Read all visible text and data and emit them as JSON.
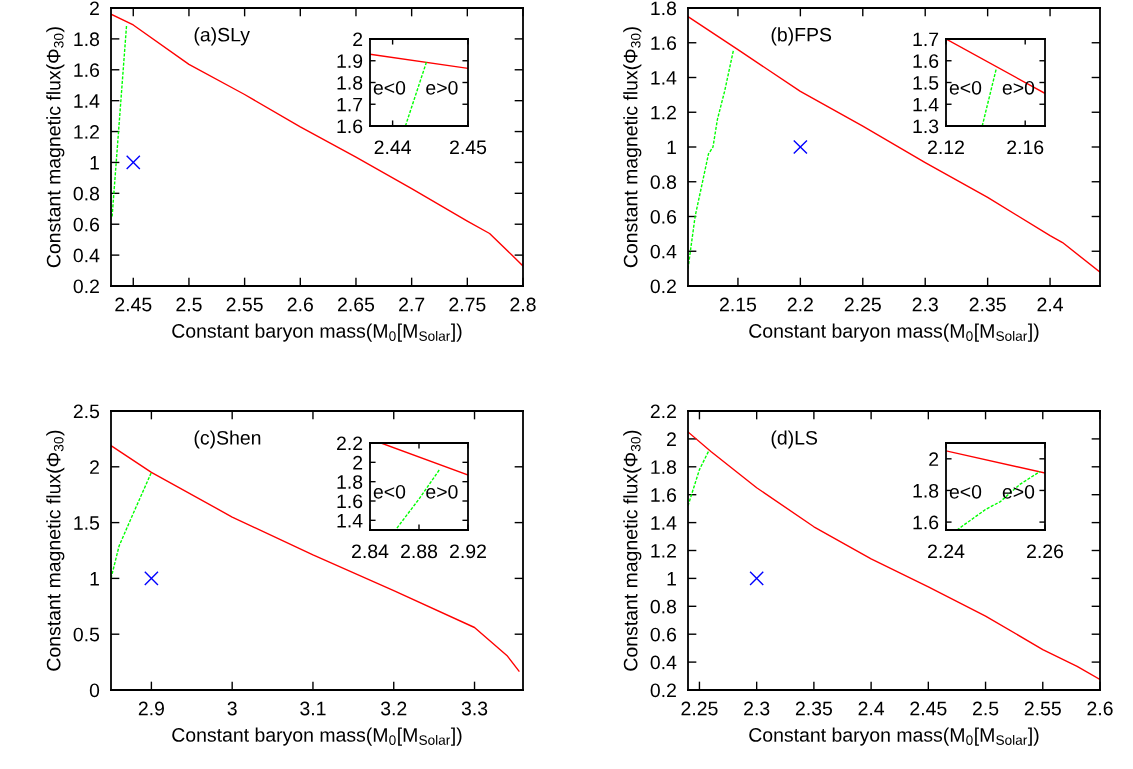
{
  "chart_data": [
    {
      "type": "line",
      "title": "(a)SLy",
      "xlabel": "Constant baryon mass(M$_{0}$[M$_{Solar}$])",
      "ylabel": "Constant magnetic flux(Φ$_{30}$)",
      "xlim": [
        2.43,
        2.8
      ],
      "xticks": [
        2.45,
        2.5,
        2.55,
        2.6,
        2.65,
        2.7,
        2.75,
        2.8
      ],
      "ylim": [
        0.2,
        2
      ],
      "yticks": [
        0.2,
        0.4,
        0.6,
        0.8,
        1,
        1.2,
        1.4,
        1.6,
        1.8,
        2
      ],
      "grid": false,
      "legend": false,
      "series": [
        {
          "type": "line",
          "color": "#ff0000",
          "line_style": "solid",
          "x": [
            2.43,
            2.45,
            2.5,
            2.55,
            2.6,
            2.65,
            2.7,
            2.75,
            2.77,
            2.79,
            2.8
          ],
          "values": [
            1.96,
            1.89,
            1.635,
            1.44,
            1.23,
            1.035,
            0.83,
            0.62,
            0.54,
            0.4,
            0.33
          ]
        },
        {
          "type": "line",
          "color": "#00ff00",
          "line_style": "dashed",
          "x": [
            2.431,
            2.444
          ],
          "values": [
            0.65,
            1.89
          ]
        },
        {
          "type": "scatter",
          "color": "#0000ff",
          "marker": "cross",
          "x": [
            2.45
          ],
          "values": [
            1
          ]
        }
      ]
    },
    {
      "type": "line",
      "xlim": [
        2.437,
        2.45
      ],
      "xticks": [
        2.44,
        2.45
      ],
      "ylim": [
        1.6,
        2
      ],
      "yticks": [
        1.6,
        1.7,
        1.8,
        1.9,
        2
      ],
      "grid": false,
      "legend": false,
      "annotations": [
        "e<0",
        "e>0"
      ],
      "series": [
        {
          "type": "line",
          "color": "#ff0000",
          "line_style": "solid",
          "x": [
            2.437,
            2.45
          ],
          "values": [
            1.93,
            1.865
          ]
        },
        {
          "type": "line",
          "color": "#00ff00",
          "line_style": "dashed",
          "x": [
            2.4417,
            2.4445
          ],
          "values": [
            1.6,
            1.895
          ]
        }
      ]
    },
    {
      "type": "line",
      "title": "(b)FPS",
      "xlabel": "Constant baryon mass(M$_{0}$[M$_{Solar}$])",
      "ylabel": "Constant magnetic flux(Φ$_{30}$)",
      "xlim": [
        2.11,
        2.44
      ],
      "xticks": [
        2.15,
        2.2,
        2.25,
        2.3,
        2.35,
        2.4
      ],
      "ylim": [
        0.2,
        1.8
      ],
      "yticks": [
        0.2,
        0.4,
        0.6,
        0.8,
        1,
        1.2,
        1.4,
        1.6,
        1.8
      ],
      "grid": false,
      "legend": false,
      "series": [
        {
          "type": "line",
          "color": "#ff0000",
          "line_style": "solid",
          "x": [
            2.11,
            2.15,
            2.2,
            2.25,
            2.3,
            2.35,
            2.4,
            2.41,
            2.44
          ],
          "values": [
            1.75,
            1.56,
            1.32,
            1.12,
            0.91,
            0.71,
            0.49,
            0.45,
            0.28
          ]
        },
        {
          "type": "line",
          "color": "#00ff00",
          "line_style": "dashed",
          "x": [
            2.11,
            2.1157,
            2.1264,
            2.13,
            2.1336,
            2.1393,
            2.1465
          ],
          "values": [
            0.3,
            0.6,
            0.96,
            1.0,
            1.16,
            1.32,
            1.56
          ]
        },
        {
          "type": "scatter",
          "color": "#0000ff",
          "marker": "cross",
          "x": [
            2.2
          ],
          "values": [
            1
          ]
        }
      ]
    },
    {
      "type": "line",
      "xlim": [
        2.12,
        2.17
      ],
      "xticks": [
        2.12,
        2.16
      ],
      "ylim": [
        1.3,
        1.7
      ],
      "yticks": [
        1.3,
        1.4,
        1.5,
        1.6,
        1.7
      ],
      "grid": false,
      "legend": false,
      "annotations": [
        "e<0",
        "e>0"
      ],
      "series": [
        {
          "type": "line",
          "color": "#ff0000",
          "line_style": "solid",
          "x": [
            2.12,
            2.17
          ],
          "values": [
            1.7,
            1.45
          ]
        },
        {
          "type": "line",
          "color": "#00ff00",
          "line_style": "dashed",
          "x": [
            2.1383,
            2.1453
          ],
          "values": [
            1.3,
            1.56
          ]
        }
      ]
    },
    {
      "type": "line",
      "title": "(c)Shen",
      "xlabel": "Constant baryon mass(M$_{0}$[M$_{Solar}$])",
      "ylabel": "Constant magnetic flux(Φ$_{30}$)",
      "xlim": [
        2.85,
        3.36
      ],
      "xticks": [
        2.9,
        3,
        3.1,
        3.2,
        3.3
      ],
      "ylim": [
        0,
        2.5
      ],
      "yticks": [
        0,
        0.5,
        1,
        1.5,
        2,
        2.5
      ],
      "grid": false,
      "legend": false,
      "series": [
        {
          "type": "line",
          "color": "#ff0000",
          "line_style": "solid",
          "x": [
            2.85,
            2.9,
            3.0,
            3.1,
            3.2,
            3.3,
            3.34,
            3.355
          ],
          "values": [
            2.19,
            1.95,
            1.55,
            1.21,
            0.89,
            0.56,
            0.31,
            0.17
          ]
        },
        {
          "type": "line",
          "color": "#00ff00",
          "line_style": "dashed",
          "x": [
            2.85,
            2.86,
            2.8756,
            2.9
          ],
          "values": [
            1.0,
            1.29,
            1.55,
            1.95
          ]
        },
        {
          "type": "scatter",
          "color": "#0000ff",
          "marker": "cross",
          "x": [
            2.9
          ],
          "values": [
            1
          ]
        }
      ]
    },
    {
      "type": "line",
      "xlim": [
        2.84,
        2.92
      ],
      "xticks": [
        2.84,
        2.88,
        2.92
      ],
      "ylim": [
        1.3,
        2.2
      ],
      "yticks": [
        1.4,
        1.6,
        1.8,
        2,
        2.2
      ],
      "grid": false,
      "legend": false,
      "annotations": [
        "e<0",
        "e>0"
      ],
      "series": [
        {
          "type": "line",
          "color": "#ff0000",
          "line_style": "solid",
          "x": [
            2.849,
            2.92
          ],
          "values": [
            2.2,
            1.87
          ]
        },
        {
          "type": "line",
          "color": "#00ff00",
          "line_style": "dashed",
          "x": [
            2.862,
            2.88,
            2.897
          ],
          "values": [
            1.32,
            1.62,
            1.93
          ]
        }
      ]
    },
    {
      "type": "line",
      "title": "(d)LS",
      "xlabel": "Constant baryon mass(M$_{0}$[M$_{Solar}$])",
      "ylabel": "Constant magnetic flux(Φ$_{30}$)",
      "xlim": [
        2.24,
        2.6
      ],
      "xticks": [
        2.25,
        2.3,
        2.35,
        2.4,
        2.45,
        2.5,
        2.55,
        2.6
      ],
      "ylim": [
        0.2,
        2.2
      ],
      "yticks": [
        0.2,
        0.4,
        0.6,
        0.8,
        1,
        1.2,
        1.4,
        1.6,
        1.8,
        2,
        2.2
      ],
      "grid": false,
      "legend": false,
      "series": [
        {
          "type": "line",
          "color": "#ff0000",
          "line_style": "solid",
          "x": [
            2.24,
            2.26,
            2.3,
            2.35,
            2.4,
            2.45,
            2.5,
            2.55,
            2.58,
            2.6
          ],
          "values": [
            2.05,
            1.91,
            1.65,
            1.37,
            1.14,
            0.94,
            0.73,
            0.49,
            0.37,
            0.275
          ]
        },
        {
          "type": "line",
          "color": "#00ff00",
          "line_style": "dashed",
          "x": [
            2.24,
            2.245,
            2.25,
            2.2585
          ],
          "values": [
            1.52,
            1.65,
            1.78,
            1.92
          ]
        },
        {
          "type": "scatter",
          "color": "#0000ff",
          "marker": "cross",
          "x": [
            2.3
          ],
          "values": [
            1
          ]
        }
      ]
    },
    {
      "type": "line",
      "xlim": [
        2.24,
        2.26
      ],
      "xticks": [
        2.24,
        2.26
      ],
      "ylim": [
        1.55,
        2.1
      ],
      "yticks": [
        1.6,
        1.8,
        2
      ],
      "grid": false,
      "legend": false,
      "annotations": [
        "e<0",
        "e>0"
      ],
      "series": [
        {
          "type": "line",
          "color": "#ff0000",
          "line_style": "solid",
          "x": [
            2.24,
            2.26
          ],
          "values": [
            2.05,
            1.91
          ]
        },
        {
          "type": "line",
          "color": "#00ff00",
          "line_style": "dashed",
          "x": [
            2.2422,
            2.248,
            2.251,
            2.255,
            2.259
          ],
          "values": [
            1.55,
            1.68,
            1.73,
            1.84,
            1.92
          ]
        }
      ]
    }
  ]
}
